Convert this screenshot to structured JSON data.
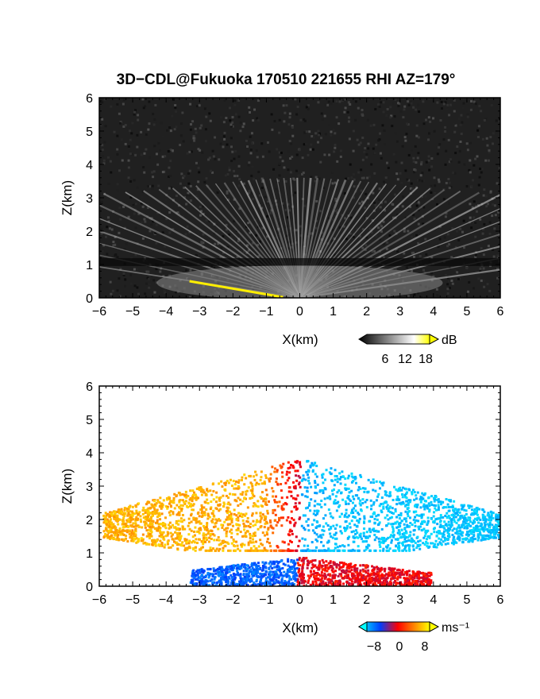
{
  "title": "3D−CDL@Fukuoka 170510 221655 RHI AZ=179°",
  "chart_data": [
    {
      "type": "heatmap",
      "panel": "top",
      "quantity": "backscatter intensity",
      "xlabel": "X(km)",
      "ylabel": "Z(km)",
      "xlim": [
        -6,
        6
      ],
      "ylim": [
        0,
        6
      ],
      "xticks": [
        "−6",
        "−5",
        "−4",
        "−3",
        "−2",
        "−1",
        "0",
        "1",
        "2",
        "3",
        "4",
        "5",
        "6"
      ],
      "yticks": [
        "0",
        "1",
        "2",
        "3",
        "4",
        "5",
        "6"
      ],
      "colorbar": {
        "unit": "dB",
        "ticks": [
          "6",
          "12",
          "18"
        ],
        "range": [
          0,
          21
        ],
        "colors": [
          "#000000",
          "#ffffff",
          "#ffff00"
        ]
      },
      "features": {
        "boundary_layer_top_km": 1.05,
        "streaks_max_z_km": 3.6,
        "ground_echo_segment_km": {
          "x": [
            -3.3,
            -0.5
          ],
          "z": [
            0.5,
            0.02
          ],
          "color": "#ffee00"
        }
      }
    },
    {
      "type": "heatmap",
      "panel": "bottom",
      "quantity": "radial velocity",
      "xlabel": "X(km)",
      "ylabel": "Z(km)",
      "xlim": [
        -6,
        6
      ],
      "ylim": [
        0,
        6
      ],
      "xticks": [
        "−6",
        "−5",
        "−4",
        "−3",
        "−2",
        "−1",
        "0",
        "1",
        "2",
        "3",
        "4",
        "5",
        "6"
      ],
      "yticks": [
        "0",
        "1",
        "2",
        "3",
        "4",
        "5",
        "6"
      ],
      "colorbar": {
        "unit": "ms⁻¹",
        "ticks": [
          "−8",
          "0",
          "8"
        ],
        "range": [
          -10,
          10
        ],
        "colors": [
          "#00ffff",
          "#0040ff",
          "#ff0000",
          "#ffff00"
        ]
      },
      "features": {
        "upper_layer_z_km": [
          1.1,
          4.0
        ],
        "lower_layer_z_km": [
          0.0,
          1.0
        ],
        "upper_left_velocity_ms": 8,
        "upper_right_velocity_ms": -8,
        "lower_left_velocity_ms": -6,
        "lower_right_velocity_ms": 3
      }
    }
  ],
  "panels": [
    {
      "xlabel": "X(km)",
      "ylabel": "Z(km)",
      "unit_label": "dB",
      "cb_ticks": [
        "6",
        "12",
        "18"
      ]
    },
    {
      "xlabel": "X(km)",
      "ylabel": "Z(km)",
      "unit_label": "ms⁻¹",
      "cb_ticks": [
        "−8",
        "0",
        "8"
      ]
    }
  ]
}
